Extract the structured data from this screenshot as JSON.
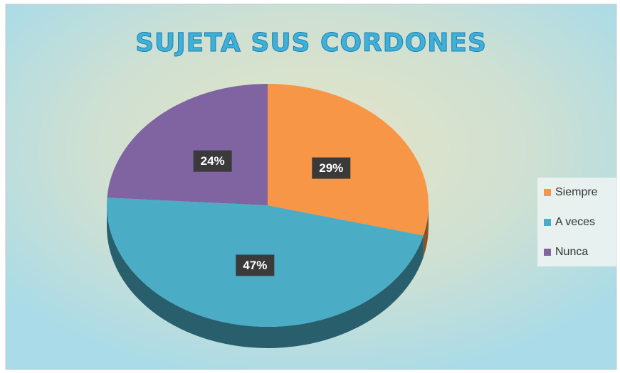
{
  "chart_data": {
    "type": "pie3d",
    "title": "SUJETA SUS CORDONES",
    "categories": [
      "Siempre",
      "A veces",
      "Nunca"
    ],
    "values": [
      29,
      47,
      24
    ],
    "value_labels": [
      "29%",
      "47%",
      "24%"
    ],
    "colors": [
      "#f79646",
      "#4bacc6",
      "#8064a2"
    ],
    "legend": "right"
  }
}
